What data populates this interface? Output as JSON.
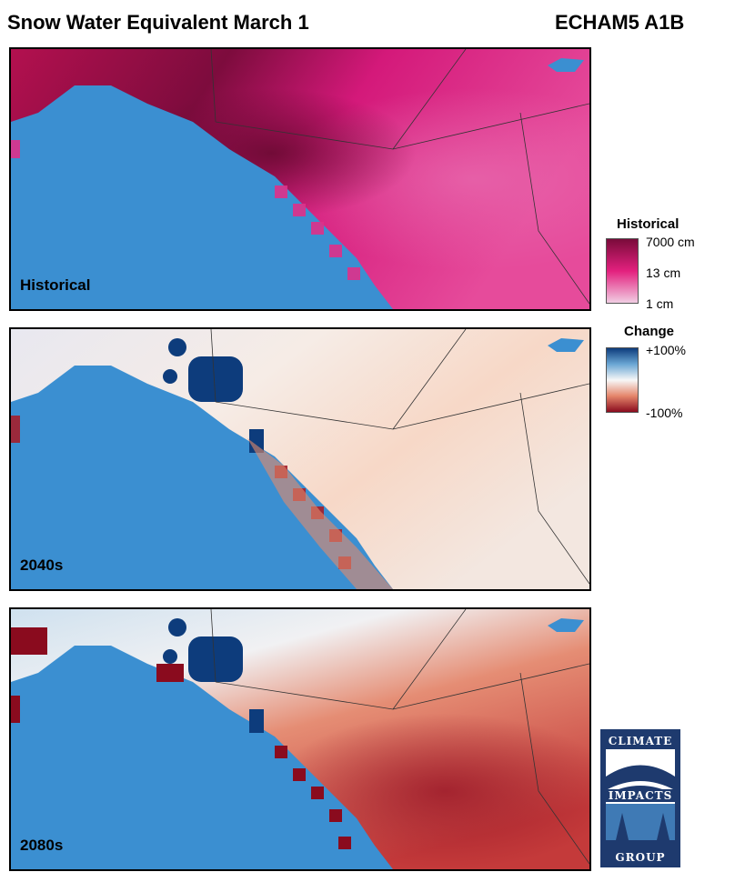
{
  "header": {
    "title": "Snow Water Equivalent March 1",
    "model": "ECHAM5 A1B"
  },
  "panels": [
    {
      "label": "Historical",
      "scheme": "historical"
    },
    {
      "label": "2040s",
      "scheme": "change_mid"
    },
    {
      "label": "2080s",
      "scheme": "change_late"
    }
  ],
  "legends": {
    "historical": {
      "title": "Historical",
      "ticks": [
        "7000 cm",
        "13 cm",
        "1 cm"
      ],
      "colors": [
        "#7a0b3a",
        "#e3207e",
        "#f1cde3"
      ]
    },
    "change": {
      "title": "Change",
      "ticks": [
        "+100%",
        "-100%"
      ],
      "colors": [
        "#0d3c7c",
        "#f7f7f7",
        "#8a0b1e"
      ]
    }
  },
  "colors": {
    "ocean": "#3b8fd1",
    "border": "#333333"
  },
  "logo": {
    "top": "CLIMATE",
    "middle": "IMPACTS",
    "bottom": "GROUP"
  }
}
